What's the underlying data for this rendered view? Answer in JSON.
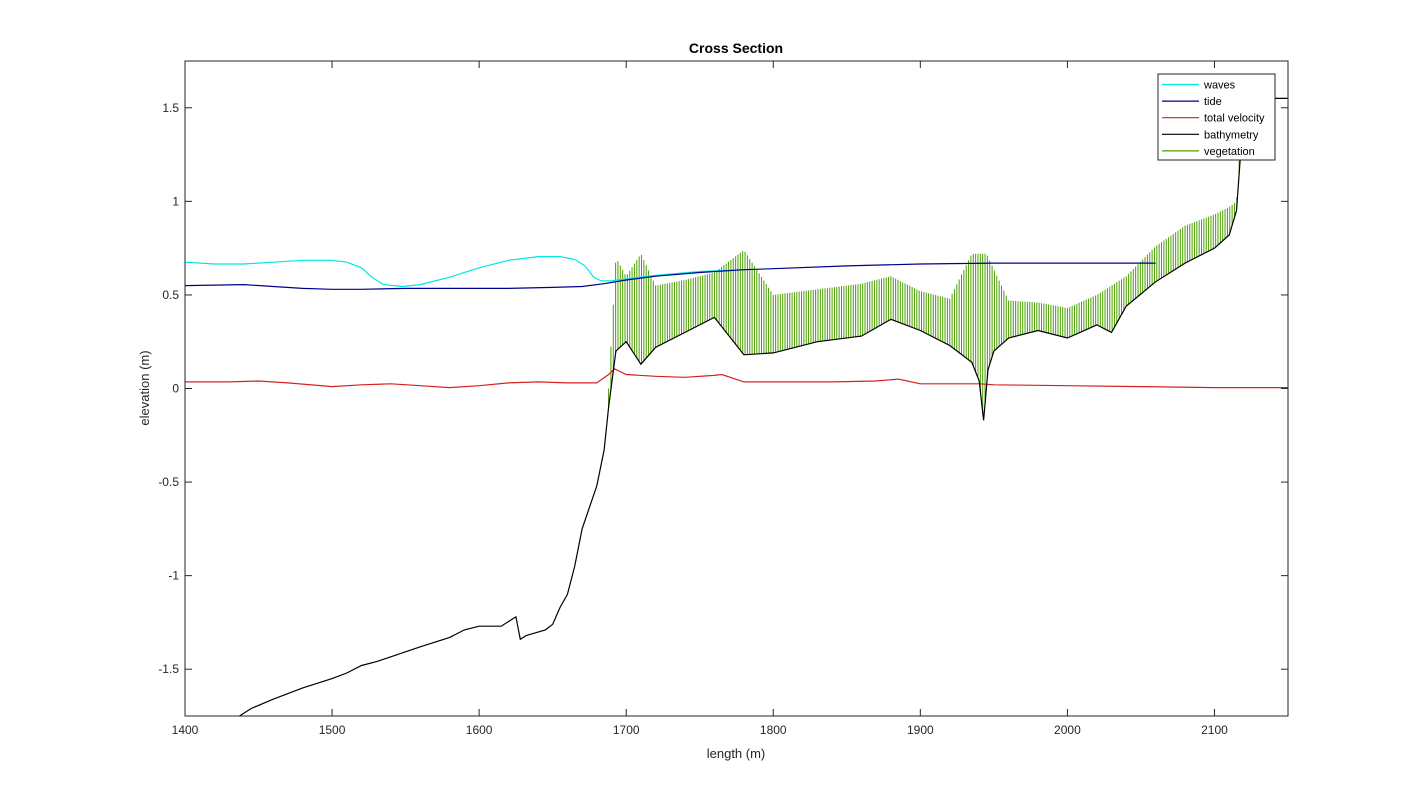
{
  "chart_data": {
    "type": "line",
    "title": "Cross Section",
    "xlabel": "length (m)",
    "ylabel": "elevation (m)",
    "xlim": [
      1400,
      2150
    ],
    "ylim": [
      -1.75,
      1.75
    ],
    "xticks": [
      1400,
      1500,
      1600,
      1700,
      1800,
      1900,
      2000,
      2100
    ],
    "yticks": [
      -1.5,
      -1,
      -0.5,
      0,
      0.5,
      1,
      1.5
    ],
    "ytick_labels": [
      "-1.5",
      "-1",
      "-0.5",
      "0",
      "0.5",
      "1",
      "1.5"
    ],
    "grid": false,
    "legend_position": "top-right",
    "series": [
      {
        "name": "waves",
        "color": "#00e5e5",
        "x": [
          1400,
          1420,
          1440,
          1460,
          1480,
          1500,
          1510,
          1520,
          1527,
          1535,
          1548,
          1560,
          1580,
          1600,
          1620,
          1640,
          1655,
          1665,
          1672,
          1678,
          1683,
          1690,
          1700,
          1720,
          1750,
          1780
        ],
        "y": [
          0.675,
          0.665,
          0.665,
          0.675,
          0.685,
          0.685,
          0.675,
          0.645,
          0.595,
          0.555,
          0.545,
          0.555,
          0.595,
          0.645,
          0.685,
          0.705,
          0.705,
          0.69,
          0.655,
          0.595,
          0.575,
          0.575,
          0.585,
          0.605,
          0.625,
          0.635
        ]
      },
      {
        "name": "tide",
        "color": "#00008b",
        "x": [
          1400,
          1440,
          1460,
          1480,
          1500,
          1520,
          1550,
          1580,
          1620,
          1650,
          1670,
          1685,
          1700,
          1720,
          1750,
          1780,
          1800,
          1850,
          1900,
          1950,
          2000,
          2050,
          2060
        ],
        "y": [
          0.55,
          0.555,
          0.545,
          0.535,
          0.53,
          0.53,
          0.535,
          0.535,
          0.535,
          0.54,
          0.545,
          0.56,
          0.58,
          0.6,
          0.62,
          0.635,
          0.64,
          0.655,
          0.665,
          0.67,
          0.67,
          0.67,
          0.67
        ]
      },
      {
        "name": "total velocity",
        "color": "#d62020",
        "x": [
          1400,
          1430,
          1450,
          1470,
          1500,
          1520,
          1540,
          1560,
          1580,
          1600,
          1620,
          1640,
          1660,
          1680,
          1688,
          1692,
          1700,
          1720,
          1740,
          1760,
          1765,
          1780,
          1800,
          1840,
          1870,
          1885,
          1900,
          1940,
          1950,
          2000,
          2050,
          2100,
          2150
        ],
        "y": [
          0.035,
          0.035,
          0.04,
          0.03,
          0.01,
          0.02,
          0.025,
          0.015,
          0.005,
          0.015,
          0.03,
          0.035,
          0.03,
          0.03,
          0.075,
          0.105,
          0.075,
          0.065,
          0.06,
          0.07,
          0.075,
          0.035,
          0.035,
          0.035,
          0.04,
          0.05,
          0.025,
          0.025,
          0.02,
          0.015,
          0.01,
          0.005,
          0.005
        ]
      },
      {
        "name": "bathymetry",
        "color": "#000000",
        "x": [
          1437,
          1445,
          1460,
          1480,
          1500,
          1510,
          1520,
          1530,
          1560,
          1580,
          1590,
          1600,
          1615,
          1625,
          1628,
          1632,
          1645,
          1650,
          1655,
          1660,
          1665,
          1670,
          1680,
          1685,
          1688,
          1693,
          1700,
          1710,
          1720,
          1740,
          1760,
          1780,
          1800,
          1830,
          1860,
          1880,
          1900,
          1920,
          1935,
          1940,
          1943,
          1946,
          1950,
          1960,
          1980,
          2000,
          2020,
          2030,
          2040,
          2060,
          2080,
          2100,
          2110,
          2115,
          2120,
          2125,
          2135,
          2150
        ],
        "y": [
          -1.75,
          -1.71,
          -1.66,
          -1.6,
          -1.55,
          -1.52,
          -1.48,
          -1.46,
          -1.38,
          -1.33,
          -1.29,
          -1.27,
          -1.27,
          -1.22,
          -1.34,
          -1.32,
          -1.29,
          -1.26,
          -1.17,
          -1.1,
          -0.95,
          -0.75,
          -0.52,
          -0.33,
          -0.1,
          0.2,
          0.25,
          0.13,
          0.22,
          0.3,
          0.38,
          0.18,
          0.19,
          0.25,
          0.28,
          0.37,
          0.31,
          0.23,
          0.14,
          0.04,
          -0.17,
          0.1,
          0.2,
          0.27,
          0.31,
          0.27,
          0.34,
          0.3,
          0.44,
          0.57,
          0.67,
          0.75,
          0.82,
          0.95,
          1.5,
          1.55,
          1.55,
          1.55
        ]
      },
      {
        "name": "vegetation",
        "color": "#4aa000",
        "x": [
          1688,
          1693,
          1700,
          1710,
          1720,
          1740,
          1760,
          1780,
          1800,
          1830,
          1860,
          1880,
          1900,
          1920,
          1935,
          1945,
          1960,
          1980,
          2000,
          2020,
          2040,
          2060,
          2080,
          2100,
          2110,
          2115,
          2120
        ],
        "y": [
          0.0,
          0.7,
          0.6,
          0.72,
          0.55,
          0.58,
          0.62,
          0.74,
          0.5,
          0.53,
          0.56,
          0.6,
          0.52,
          0.48,
          0.72,
          0.72,
          0.47,
          0.46,
          0.43,
          0.5,
          0.6,
          0.76,
          0.87,
          0.93,
          0.97,
          1.0,
          1.6
        ]
      }
    ]
  }
}
